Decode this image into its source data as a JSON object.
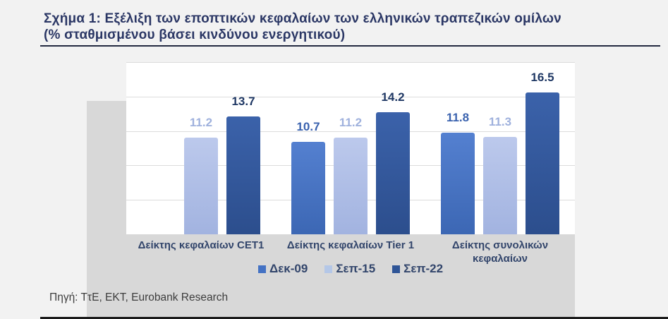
{
  "figure": {
    "title_line1": "Σχήμα 1: Εξέλιξη των εποπτικών κεφαλαίων των ελληνικών τραπεζικών ομίλων",
    "title_line2": "(% σταθμισμένου βάσει κινδύνου ενεργητικού)",
    "source": "Πηγή: ΤτΕ, ΕΚΤ, Eurobank Research"
  },
  "chart_data": {
    "type": "bar",
    "title": "Σχήμα 1: Εξέλιξη των εποπτικών κεφαλαίων των ελληνικών τραπεζικών ομίλων (% σταθμισμένου βάσει κινδύνου ενεργητικού)",
    "categories": [
      "Δείκτης κεφαλαίων CET1",
      "Δείκτης κεφαλαίων Tier 1",
      "Δείκτης συνολικών κεφαλαίων"
    ],
    "series": [
      {
        "name": "Δεκ-09",
        "color": "#4472c4",
        "gradient": [
          "#5480d0",
          "#3c67b4"
        ],
        "label_color": "#3a62ae",
        "values": [
          null,
          10.7,
          11.8
        ]
      },
      {
        "name": "Σεπ-15",
        "color": "#b4c7e7",
        "gradient": [
          "#bcc9ec",
          "#a2b3e0"
        ],
        "label_color": "#9fb1dd",
        "values": [
          11.2,
          11.2,
          11.3
        ]
      },
      {
        "name": "Σεπ-22",
        "color": "#2f5597",
        "gradient": [
          "#3b62aa",
          "#2c4e8d"
        ],
        "label_color": "#1f3864",
        "values": [
          13.7,
          14.2,
          16.5
        ]
      }
    ],
    "xlabel": "",
    "ylabel": "",
    "ylim": [
      0,
      20
    ],
    "gridline_step": 4,
    "grid": true,
    "legend_position": "bottom",
    "axis_tick_labels_visible": false
  },
  "colors": {
    "page_background": "#f2f2f2",
    "chart_backdrop": "#d8d8d8",
    "plot_background": "#ffffff",
    "gridline": "#dcdcdc",
    "title_text": "#2b3765",
    "category_text": "#32456b",
    "source_text": "#3d3d3d",
    "rule": "#1a1a1a"
  }
}
